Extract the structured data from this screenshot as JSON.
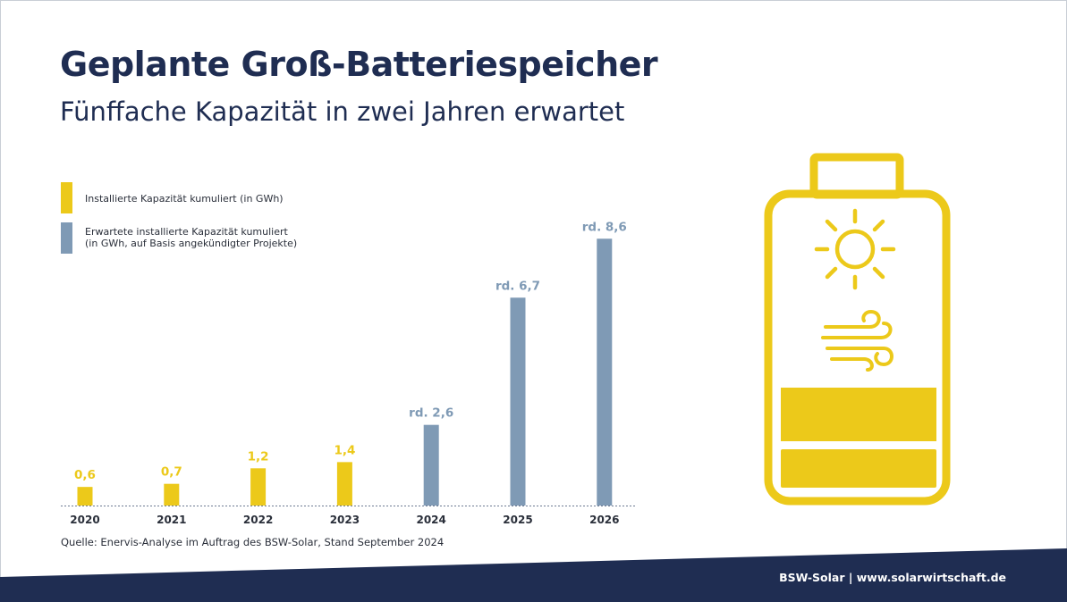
{
  "header": {
    "title": "Geplante Groß-Batteriespeicher",
    "subtitle": "Fünffache Kapazität in zwei Jahren erwartet"
  },
  "legend": [
    {
      "label": "Installierte Kapazität kumuliert (in GWh)",
      "color": "#ecc91a"
    },
    {
      "label": "Erwartete installierte Kapazität kumuliert\n(in GWh, auf Basis angekündigter Projekte)",
      "color": "#7f9ab5"
    }
  ],
  "chart_data": {
    "type": "bar",
    "categories": [
      "2020",
      "2021",
      "2022",
      "2023",
      "2024",
      "2025",
      "2026"
    ],
    "values": [
      0.6,
      0.7,
      1.2,
      1.4,
      2.6,
      6.7,
      8.6
    ],
    "value_labels": [
      "0,6",
      "0,7",
      "1,2",
      "1,4",
      "rd. 2,6",
      "rd. 6,7",
      "rd. 8,6"
    ],
    "series_kind": [
      "installed",
      "installed",
      "installed",
      "installed",
      "expected",
      "expected",
      "expected"
    ],
    "colors": {
      "installed": "#ecc91a",
      "expected": "#7f9ab5",
      "baseline": "#6d7a93",
      "year_label": "#2a2f3a"
    },
    "title": "",
    "xlabel": "",
    "ylabel": "",
    "ylim": [
      0,
      9.5
    ],
    "grid": false,
    "legend_position": "top-left"
  },
  "source": "Quelle: Enervis-Analyse im Auftrag des BSW-Solar, Stand September 2024",
  "footer": {
    "text": "BSW-Solar | www.solarwirtschaft.de",
    "band_color": "#1f2d52"
  },
  "illustration": {
    "battery_color": "#ecc91a",
    "icons": [
      "battery-icon",
      "sun-icon",
      "wind-icon"
    ]
  }
}
